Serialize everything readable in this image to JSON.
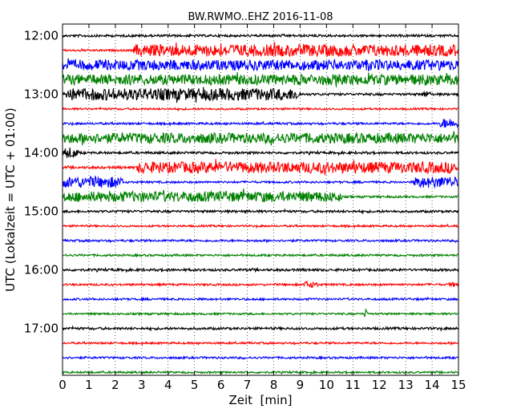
{
  "chart_data": {
    "type": "line",
    "title": "BW.RWMO..EHZ 2016-11-08",
    "xlabel": "Zeit  [min]",
    "ylabel": "UTC (Lokalzeit = UTC + 01:00)",
    "xlim": [
      0,
      15
    ],
    "x_ticks": [
      "0",
      "1",
      "2",
      "3",
      "4",
      "5",
      "6",
      "7",
      "8",
      "9",
      "10",
      "11",
      "12",
      "13",
      "14",
      "15"
    ],
    "y_ticks": [
      "12:00",
      "13:00",
      "14:00",
      "15:00",
      "16:00",
      "17:00"
    ],
    "y_tick_minutes": [
      720,
      780,
      840,
      900,
      960,
      1020
    ],
    "ylim_minutes": [
      708,
      1068
    ],
    "grid": true,
    "colors": {
      "black": "#000000",
      "red": "#ff0000",
      "blue": "#0000ff",
      "green": "#008000"
    },
    "series": [
      {
        "start": "12:00",
        "color": "black",
        "base_amp": 1.5,
        "loud": []
      },
      {
        "start": "12:15",
        "color": "red",
        "base_amp": 1.2,
        "loud": [
          [
            2.7,
            15,
            7.5
          ]
        ]
      },
      {
        "start": "12:30",
        "color": "blue",
        "base_amp": 6.5,
        "loud": []
      },
      {
        "start": "12:45",
        "color": "green",
        "base_amp": 6.5,
        "loud": []
      },
      {
        "start": "13:00",
        "color": "black",
        "base_amp": 1.5,
        "loud": [
          [
            0,
            9.0,
            7.5
          ],
          [
            13.6,
            14.0,
            4
          ]
        ]
      },
      {
        "start": "13:15",
        "color": "red",
        "base_amp": 1.2,
        "loud": []
      },
      {
        "start": "13:30",
        "color": "blue",
        "base_amp": 1.3,
        "loud": [
          [
            14.3,
            15,
            6.5
          ]
        ]
      },
      {
        "start": "13:45",
        "color": "green",
        "base_amp": 6.5,
        "loud": []
      },
      {
        "start": "14:00",
        "color": "black",
        "base_amp": 1.5,
        "loud": [
          [
            0,
            0.6,
            7
          ]
        ]
      },
      {
        "start": "14:15",
        "color": "red",
        "base_amp": 1.5,
        "loud": [
          [
            2.8,
            15,
            7
          ]
        ]
      },
      {
        "start": "14:30",
        "color": "blue",
        "base_amp": 1.3,
        "loud": [
          [
            0,
            2.3,
            7
          ],
          [
            13.3,
            15,
            7
          ]
        ]
      },
      {
        "start": "14:45",
        "color": "green",
        "base_amp": 1.2,
        "loud": [
          [
            0,
            10.6,
            6.5
          ]
        ]
      },
      {
        "start": "15:00",
        "color": "black",
        "base_amp": 1.5,
        "loud": []
      },
      {
        "start": "15:15",
        "color": "red",
        "base_amp": 1.2,
        "loud": []
      },
      {
        "start": "15:30",
        "color": "blue",
        "base_amp": 1.3,
        "loud": []
      },
      {
        "start": "15:45",
        "color": "green",
        "base_amp": 1.3,
        "loud": []
      },
      {
        "start": "16:00",
        "color": "black",
        "base_amp": 1.5,
        "loud": []
      },
      {
        "start": "16:15",
        "color": "red",
        "base_amp": 1.3,
        "loud": [
          [
            9.1,
            9.7,
            4
          ],
          [
            14.6,
            15,
            3
          ]
        ]
      },
      {
        "start": "16:30",
        "color": "blue",
        "base_amp": 1.3,
        "loud": []
      },
      {
        "start": "16:45",
        "color": "green",
        "base_amp": 1.2,
        "loud": [
          [
            11.4,
            11.6,
            6
          ]
        ]
      },
      {
        "start": "17:00",
        "color": "black",
        "base_amp": 1.5,
        "loud": []
      },
      {
        "start": "17:15",
        "color": "red",
        "base_amp": 1.2,
        "loud": []
      },
      {
        "start": "17:30",
        "color": "blue",
        "base_amp": 1.3,
        "loud": []
      },
      {
        "start": "17:45",
        "color": "green",
        "base_amp": 1.2,
        "loud": []
      }
    ]
  }
}
